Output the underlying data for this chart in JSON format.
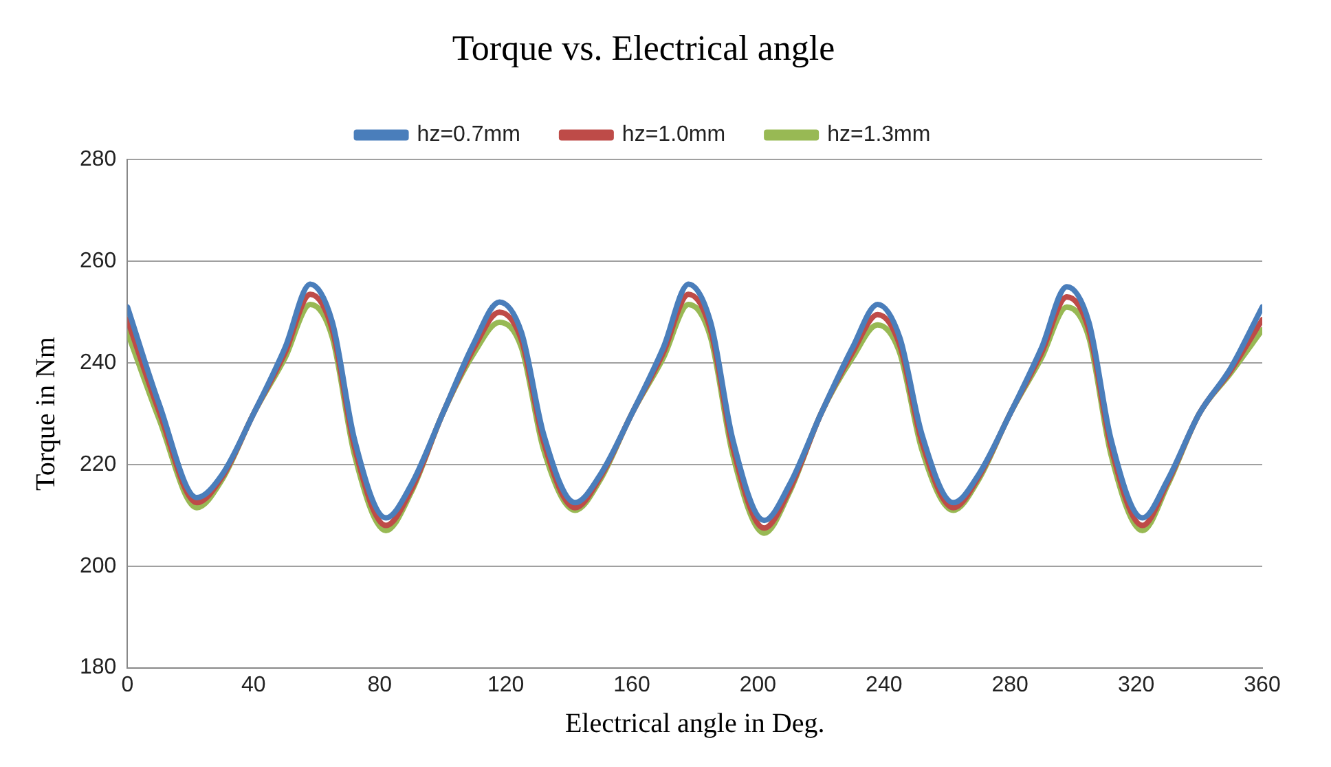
{
  "chart_data": {
    "type": "line",
    "title": "Torque vs. Electrical angle",
    "xlabel": "Electrical angle in Deg.",
    "ylabel": "Torque in Nm",
    "x": [
      0,
      10,
      22,
      30,
      40,
      50,
      58,
      65,
      72,
      82,
      90,
      100,
      110,
      118,
      125,
      132,
      142,
      150,
      160,
      170,
      178,
      185,
      192,
      202,
      210,
      220,
      230,
      238,
      245,
      252,
      262,
      270,
      280,
      290,
      298,
      305,
      312,
      322,
      330,
      340,
      350,
      360
    ],
    "series": [
      {
        "name": "hz=0.7mm",
        "color": "#4a7ebb",
        "values": [
          251,
          232,
          213.5,
          218,
          230,
          243,
          255.5,
          248,
          225,
          209.5,
          216,
          230,
          244,
          252,
          246,
          226,
          212.5,
          218,
          230,
          243,
          255.5,
          248,
          225,
          209,
          216,
          230,
          243,
          251.5,
          245,
          226,
          212.5,
          218,
          230,
          243,
          255,
          248,
          225,
          209.5,
          217,
          230,
          239,
          251
        ]
      },
      {
        "name": "hz=1.0mm",
        "color": "#be4b48",
        "values": [
          248.5,
          230.5,
          212.5,
          217.5,
          230,
          242,
          253.5,
          246.5,
          223.5,
          208,
          215,
          230,
          243,
          250,
          244.5,
          224.5,
          211.5,
          217.5,
          230,
          242,
          253.5,
          246.5,
          223.5,
          207.5,
          215,
          230,
          242,
          249.5,
          243.5,
          224.5,
          211.5,
          217.5,
          230,
          242,
          253,
          246.5,
          223.5,
          208,
          216.5,
          230,
          238.5,
          248.5
        ]
      },
      {
        "name": "hz=1.3mm",
        "color": "#98b954",
        "values": [
          246,
          229,
          211.5,
          217,
          230,
          241,
          251.5,
          245,
          222,
          207,
          214.5,
          230,
          242,
          248,
          243,
          223,
          211,
          217,
          230,
          241,
          251.5,
          245,
          222,
          206.5,
          214.5,
          230,
          241,
          247.5,
          242,
          223,
          211,
          217,
          230,
          241,
          251,
          245,
          222,
          207,
          216,
          230,
          238,
          246.5
        ]
      }
    ],
    "xlim": [
      0,
      360
    ],
    "xticks": [
      0,
      40,
      80,
      120,
      160,
      200,
      240,
      280,
      320,
      360
    ],
    "ylim": [
      180,
      280
    ],
    "yticks": [
      180,
      200,
      220,
      240,
      260,
      280
    ],
    "grid": "y",
    "legend": "top",
    "marker": "none",
    "line_style": "solid"
  }
}
